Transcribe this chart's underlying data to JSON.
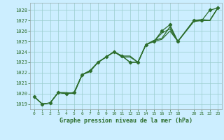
{
  "title": "Graphe pression niveau de la mer (hPa)",
  "bg_color": "#cceeff",
  "plot_bg_color": "#cceeff",
  "bottom_bg_color": "#ffffff",
  "line_color": "#2d6e2d",
  "grid_color": "#99cccc",
  "spine_color": "#99aaaa",
  "xlim": [
    -0.5,
    23.5
  ],
  "ylim": [
    1018.5,
    1028.7
  ],
  "yticks": [
    1019,
    1020,
    1021,
    1022,
    1023,
    1024,
    1025,
    1026,
    1027,
    1028
  ],
  "xticks": [
    0,
    1,
    2,
    3,
    4,
    5,
    6,
    7,
    8,
    9,
    10,
    11,
    12,
    13,
    14,
    15,
    16,
    17,
    18,
    20,
    21,
    22,
    23
  ],
  "lines": [
    {
      "x": [
        0,
        1,
        2,
        3,
        4,
        5,
        6,
        7,
        8,
        9,
        10,
        11,
        12,
        13,
        14,
        15,
        16,
        17,
        18,
        20,
        21,
        22,
        23
      ],
      "y": [
        1019.7,
        1019.0,
        1019.1,
        1020.1,
        1020.0,
        1020.1,
        1021.8,
        1022.2,
        1023.0,
        1023.5,
        1024.0,
        1023.6,
        1023.0,
        1023.0,
        1024.7,
        1025.0,
        1026.0,
        1026.6,
        1025.0,
        1027.0,
        1027.0,
        1028.0,
        1028.2
      ],
      "marker": true
    },
    {
      "x": [
        0,
        1,
        2,
        3,
        4,
        5,
        6,
        7,
        8,
        9,
        10,
        11,
        12,
        13,
        14,
        15,
        16,
        17,
        18,
        20,
        21,
        22,
        23
      ],
      "y": [
        1019.7,
        1019.0,
        1019.1,
        1020.1,
        1020.0,
        1020.1,
        1021.8,
        1022.2,
        1023.0,
        1023.5,
        1024.0,
        1023.6,
        1023.0,
        1023.0,
        1024.7,
        1025.0,
        1025.2,
        1026.0,
        1025.0,
        1026.9,
        1027.0,
        1027.0,
        1028.2
      ],
      "marker": false
    },
    {
      "x": [
        2,
        3,
        4,
        5,
        6,
        7,
        8,
        9,
        10,
        11,
        12,
        13,
        14,
        15,
        16,
        17,
        18,
        20,
        21,
        22,
        23
      ],
      "y": [
        1019.1,
        1020.1,
        1020.0,
        1020.1,
        1021.8,
        1022.1,
        1023.0,
        1023.5,
        1024.0,
        1023.6,
        1023.6,
        1023.0,
        1024.7,
        1025.0,
        1025.8,
        1026.2,
        1025.0,
        1027.0,
        1027.0,
        1027.0,
        1028.2
      ],
      "marker": false
    },
    {
      "x": [
        0,
        1,
        2,
        3,
        4,
        5,
        6,
        7,
        8,
        9,
        10,
        11,
        12,
        13,
        14,
        15,
        16,
        17,
        18,
        20,
        21,
        22,
        23
      ],
      "y": [
        1019.7,
        1019.0,
        1019.1,
        1020.1,
        1020.1,
        1020.0,
        1021.8,
        1022.2,
        1023.0,
        1023.5,
        1024.0,
        1023.5,
        1023.5,
        1023.0,
        1024.7,
        1025.1,
        1025.3,
        1026.4,
        1025.0,
        1027.0,
        1027.1,
        1027.0,
        1028.2
      ],
      "marker": false
    }
  ]
}
